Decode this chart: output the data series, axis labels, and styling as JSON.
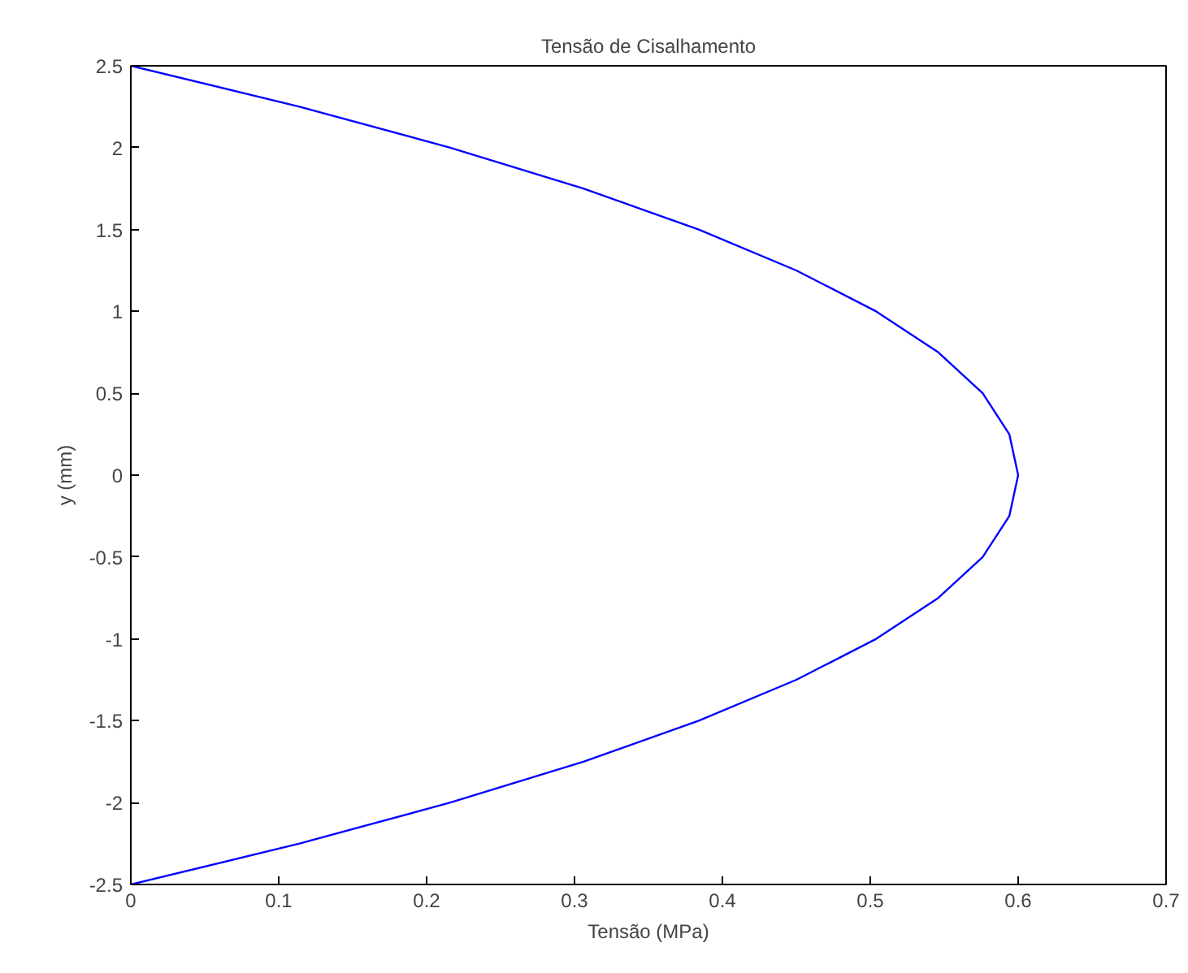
{
  "chart_data": {
    "type": "line",
    "title": "Tensão de Cisalhamento",
    "xlabel": "Tensão (MPa)",
    "ylabel": "y (mm)",
    "series": [
      {
        "color": "#0000ff",
        "x": [
          0,
          0.114,
          0.216,
          0.306,
          0.384,
          0.45,
          0.504,
          0.546,
          0.576,
          0.594,
          0.6,
          0.594,
          0.576,
          0.546,
          0.504,
          0.45,
          0.384,
          0.306,
          0.216,
          0.114,
          0
        ],
        "values": [
          2.5,
          2.25,
          2,
          1.75,
          1.5,
          1.25,
          1,
          0.75,
          0.5,
          0.25,
          0,
          -0.25,
          -0.5,
          -0.75,
          -1,
          -1.25,
          -1.5,
          -1.75,
          -2,
          -2.25,
          -2.5
        ]
      }
    ],
    "xlim": [
      0,
      0.7
    ],
    "ylim": [
      -2.5,
      2.5
    ],
    "xticks": [
      0,
      0.1,
      0.2,
      0.3,
      0.4,
      0.5,
      0.6,
      0.7
    ],
    "yticks": [
      -2.5,
      -2,
      -1.5,
      -1,
      -0.5,
      0,
      0.5,
      1,
      1.5,
      2,
      2.5
    ],
    "grid": false,
    "marker": "none",
    "line_style": "solid"
  }
}
